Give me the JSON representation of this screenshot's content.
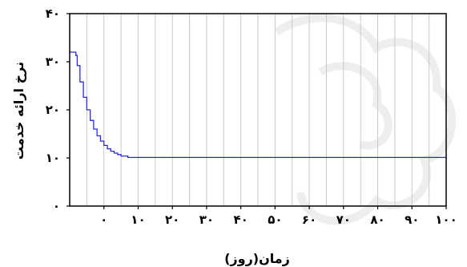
{
  "chart_data": {
    "type": "line",
    "title": "",
    "xlabel": "زمان(روز)",
    "ylabel": "نرخ ارائه خدمت",
    "xlim": [
      -10,
      100
    ],
    "ylim": [
      0,
      40
    ],
    "x_ticks": [
      0,
      10,
      20,
      30,
      40,
      50,
      60,
      70,
      80,
      90,
      100
    ],
    "x_tick_labels": [
      "۰",
      "۱۰",
      "۲۰",
      "۳۰",
      "۴۰",
      "۵۰",
      "۶۰",
      "۷۰",
      "۸۰",
      "۹۰",
      "۱۰۰"
    ],
    "y_ticks": [
      0,
      10,
      20,
      30,
      40
    ],
    "y_tick_labels": [
      "۰",
      "۱۰",
      "۲۰",
      "۳۰",
      "۴۰"
    ],
    "grid": true,
    "series": [
      {
        "color": "#2b2bd6",
        "step": true,
        "x": [
          -10,
          -8.5,
          -8.2,
          -7.8,
          -7,
          -6,
          -5,
          -4,
          -3,
          -2,
          -1,
          0,
          1,
          2,
          3,
          4,
          5,
          7,
          100
        ],
        "values": [
          32,
          32,
          31.3,
          29.2,
          25.8,
          22.6,
          20.0,
          17.8,
          16.0,
          14.6,
          13.5,
          12.6,
          11.9,
          11.4,
          11.0,
          10.7,
          10.4,
          10.1,
          10.1
        ]
      }
    ]
  }
}
